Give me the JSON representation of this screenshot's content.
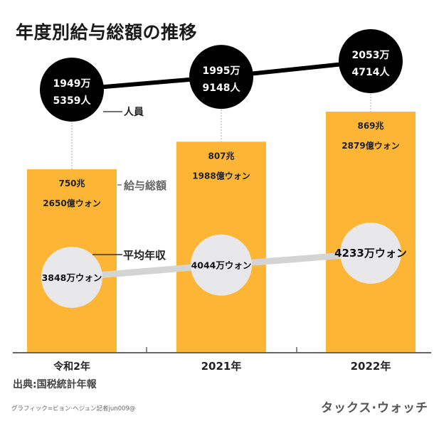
{
  "title": "年度別給与総額の推移",
  "source": "出典:国税統計年報",
  "credit": "グラフィック=ビョン·ヘジュン記者jun009@",
  "brand": "タックス·ウォッチ",
  "legend": {
    "people": "人員",
    "total": "給与総額",
    "average": "平均年収"
  },
  "colors": {
    "bar": "#fcb534",
    "people_circle": "#000000",
    "people_text": "#ffffff",
    "avg_circle": "#e8e8ea",
    "avg_line": "#d4d4d4",
    "axis": "#666666",
    "label_text": "#222222"
  },
  "chart_data": {
    "type": "bar",
    "title": "年度別給与総額の推移",
    "categories": [
      "令和2年",
      "2021年",
      "2022年"
    ],
    "series": [
      {
        "name": "給与総額",
        "unit": "億ウォン",
        "values": [
          7502650,
          8071988,
          8692879
        ],
        "labels_top": [
          "750兆",
          "807兆",
          "869兆"
        ],
        "labels_bottom": [
          "2650億ウォン",
          "1988億ウォン",
          "2879億ウォン"
        ]
      },
      {
        "name": "人員",
        "type": "line",
        "unit": "人",
        "values": [
          19495359,
          19959148,
          20534714
        ],
        "labels_top": [
          "1949万",
          "1995万",
          "2053万"
        ],
        "labels_bottom": [
          "5359人",
          "9148人",
          "4714人"
        ]
      },
      {
        "name": "平均年収",
        "type": "line",
        "unit": "万ウォン",
        "values": [
          3848,
          4044,
          4233
        ],
        "labels": [
          "3848万ウォン",
          "4044万ウォン",
          "4233万ウォン"
        ]
      }
    ],
    "xlabel": "",
    "ylabel": "",
    "grid": false
  }
}
